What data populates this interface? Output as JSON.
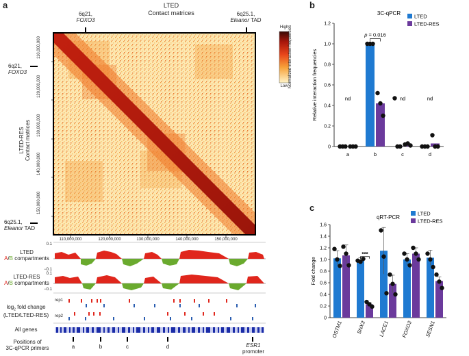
{
  "panel_a": {
    "letter": "a",
    "title_line1": "LTED",
    "title_line2": "Contact matrices",
    "top_labels": [
      {
        "line1": "6q21,",
        "line2": "FOXO3"
      },
      {
        "line1": "6q25.1,",
        "line2_italic": "Eleanor",
        "line2_rest": " TAD"
      }
    ],
    "left_labels": [
      {
        "line1": "6q21,",
        "line2": "FOXO3"
      },
      {
        "line1": "6q25.1,",
        "line2_italic": "Eleanor",
        "line2_rest": " TAD"
      }
    ],
    "y_axis_title_line1": "LTED-RES",
    "y_axis_title_line2": "Contact matrices",
    "y_ticks": [
      "110,000,000",
      "120,000,000",
      "130,000,000",
      "140,000,000",
      "150,000,000"
    ],
    "x_ticks": [
      "110,000,000",
      "120,000,000",
      "130,000,000",
      "140,000,000",
      "150,000,000"
    ],
    "colorbar": {
      "high": "High",
      "low": "Low",
      "label": "Normalized interaction frequencies"
    },
    "tracks": {
      "lted_label": "LTED",
      "lted_res_label": "LTED-RES",
      "compartments_a": "A",
      "compartments_slash": "/",
      "compartments_b": "B",
      "compartments_rest": " compartments",
      "scale_pos": "0.1",
      "scale_neg": "−0.1",
      "log_label_1": "log",
      "log_sub": "2",
      "log_label_1_rest": " fold change",
      "log_label_2": "(LTED/LTED-RES)",
      "rep1": "rep1",
      "rep2": "rep2",
      "all_genes": "All genes",
      "positions_line1": "Positions of",
      "positions_line2": "3C-qPCR primers",
      "primers": [
        "a",
        "b",
        "c",
        "d"
      ],
      "esr1_italic": "ESR1",
      "esr1_line2": "promoter"
    },
    "colors": {
      "a_comp": "#e0261c",
      "b_comp": "#6aaa2e",
      "rep_red": "#e0261c",
      "rep_blue": "#2a5db0",
      "genes": "#1a2ca8"
    }
  },
  "panel_b": {
    "letter": "b",
    "chart_data": {
      "type": "bar",
      "title": "3C-qPCR",
      "ylabel": "Relative interaction frequencies",
      "categories": [
        "a",
        "b",
        "c",
        "d"
      ],
      "ylim": [
        0,
        1.2
      ],
      "yticks": [
        "0",
        "0.2",
        "0.4",
        "0.6",
        "0.8",
        "1.0",
        "1.2"
      ],
      "series": [
        {
          "name": "LTED",
          "color": "#1f7ad1",
          "values": [
            0,
            1.0,
            0,
            0
          ],
          "points": [
            [
              0,
              0,
              0
            ],
            [
              1.0,
              1.0,
              1.0
            ],
            [
              0.47,
              0,
              0
            ],
            [
              0,
              0,
              0
            ]
          ]
        },
        {
          "name": "LTED-RES",
          "color": "#6b3a9c",
          "values": [
            0,
            0.42,
            0.02,
            0.03
          ],
          "points": [
            [
              0,
              0,
              0
            ],
            [
              0.52,
              0.42,
              0.3
            ],
            [
              0.02,
              0.03,
              0.01
            ],
            [
              0.11,
              0,
              0
            ]
          ]
        }
      ],
      "annotations": {
        "nd": "nd",
        "pvalue_p": "p",
        "pvalue_rest": " = 0.016"
      }
    }
  },
  "panel_c": {
    "letter": "c",
    "chart_data": {
      "type": "bar",
      "title": "qRT-PCR",
      "ylabel": "Fold change",
      "categories": [
        "OSTM1",
        "SNX3",
        "LACE1",
        "FOXO3",
        "SESN1"
      ],
      "ylim": [
        0,
        1.6
      ],
      "yticks": [
        "0",
        "0.2",
        "0.4",
        "0.6",
        "0.8",
        "1.0",
        "1.2",
        "1.4",
        "1.6"
      ],
      "series": [
        {
          "name": "LTED",
          "color": "#1f7ad1",
          "values": [
            1.02,
            0.98,
            1.15,
            1.0,
            1.03
          ],
          "errors": [
            0.13,
            0.05,
            0.4,
            0.1,
            0.13
          ],
          "points": [
            [
              1.18,
              1.0,
              0.89
            ],
            [
              0.98,
              0.96,
              1.01
            ],
            [
              1.5,
              1.05,
              0.42
            ],
            [
              1.1,
              1.0,
              0.9
            ],
            [
              1.1,
              1.0,
              0.87
            ]
          ]
        },
        {
          "name": "LTED-RES",
          "color": "#6b3a9c",
          "values": [
            1.07,
            0.23,
            0.58,
            1.1,
            0.63
          ],
          "errors": [
            0.18,
            0.03,
            0.15,
            0.1,
            0.07
          ],
          "points": [
            [
              1.22,
              1.1,
              0.9
            ],
            [
              0.27,
              0.23,
              0.19
            ],
            [
              0.74,
              0.58,
              0.4
            ],
            [
              1.2,
              1.1,
              1.0
            ],
            [
              0.74,
              0.62,
              0.51
            ]
          ]
        }
      ],
      "annotations": {
        "significance": "***"
      }
    }
  }
}
